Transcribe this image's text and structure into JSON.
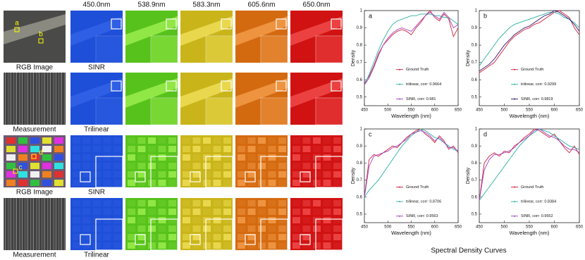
{
  "figure": {
    "wavelengths": [
      "450.0nm",
      "538.9nm",
      "583.3nm",
      "605.6nm",
      "650.0nm"
    ],
    "row_labels": [
      [
        "RGB Image",
        "SINR"
      ],
      [
        "Measurement",
        "Trilinear"
      ],
      [
        "RGB Image",
        "SINR"
      ],
      [
        "Measurement",
        "Trilinear"
      ]
    ],
    "points": [
      "a",
      "b",
      "c",
      "d"
    ],
    "caption": "Spectral Density Curves"
  },
  "chart_data": [
    {
      "type": "line",
      "panel_label": "a",
      "xlabel": "Wavelength (nm)",
      "ylabel": "Density",
      "x": [
        450,
        460,
        470,
        480,
        490,
        500,
        510,
        520,
        530,
        540,
        550,
        560,
        570,
        580,
        590,
        600,
        610,
        620,
        630,
        640,
        650
      ],
      "xlim": [
        450,
        650
      ],
      "xticks": [
        450,
        500,
        550,
        600,
        650
      ],
      "ylim": [
        0.45,
        1.0
      ],
      "yticks": [
        0.5,
        0.6,
        0.7,
        0.8,
        0.9,
        1
      ],
      "series": [
        {
          "name": "Ground Truth",
          "color": "#d0203a",
          "values": [
            0.58,
            0.62,
            0.68,
            0.75,
            0.8,
            0.83,
            0.86,
            0.88,
            0.89,
            0.88,
            0.86,
            0.9,
            0.93,
            0.97,
            1.0,
            0.96,
            0.94,
            0.98,
            0.95,
            0.85,
            0.9
          ]
        },
        {
          "name": "trilinear, corr: 0.9664",
          "color": "#2ab0a0",
          "values": [
            0.57,
            0.63,
            0.7,
            0.77,
            0.83,
            0.88,
            0.92,
            0.94,
            0.95,
            0.96,
            0.97,
            0.97,
            0.98,
            0.98,
            0.98,
            0.97,
            0.97,
            0.96,
            0.96,
            0.94,
            0.92
          ]
        },
        {
          "name": "SINR, corr: 0.981",
          "color": "#a040c0",
          "values": [
            0.57,
            0.61,
            0.67,
            0.74,
            0.8,
            0.84,
            0.87,
            0.89,
            0.9,
            0.89,
            0.88,
            0.91,
            0.94,
            0.97,
            0.99,
            0.97,
            0.95,
            0.99,
            0.96,
            0.9,
            0.92
          ]
        }
      ]
    },
    {
      "type": "line",
      "panel_label": "b",
      "xlabel": "Wavelength (nm)",
      "ylabel": "Density",
      "x": [
        450,
        460,
        470,
        480,
        490,
        500,
        510,
        520,
        530,
        540,
        550,
        560,
        570,
        580,
        590,
        600,
        610,
        620,
        630,
        640,
        650
      ],
      "xlim": [
        450,
        650
      ],
      "xticks": [
        450,
        500,
        550,
        600,
        650
      ],
      "ylim": [
        0.45,
        1.0
      ],
      "yticks": [
        0.5,
        0.6,
        0.7,
        0.8,
        0.9,
        1
      ],
      "series": [
        {
          "name": "Ground Truth",
          "color": "#d0203a",
          "values": [
            0.64,
            0.66,
            0.68,
            0.7,
            0.74,
            0.78,
            0.82,
            0.85,
            0.87,
            0.89,
            0.9,
            0.92,
            0.93,
            0.95,
            0.97,
            0.99,
            1.0,
            0.98,
            0.96,
            0.9,
            0.86
          ]
        },
        {
          "name": "trilinear, corr: 0.9299",
          "color": "#2ab0a0",
          "values": [
            0.68,
            0.72,
            0.76,
            0.8,
            0.84,
            0.87,
            0.9,
            0.92,
            0.93,
            0.94,
            0.95,
            0.96,
            0.97,
            0.98,
            0.99,
            0.99,
            0.98,
            0.96,
            0.95,
            0.93,
            0.9
          ]
        },
        {
          "name": "SINR, corr: 0.9819",
          "color": "#3a1870",
          "values": [
            0.65,
            0.67,
            0.69,
            0.72,
            0.76,
            0.8,
            0.83,
            0.86,
            0.88,
            0.9,
            0.91,
            0.93,
            0.95,
            0.97,
            0.98,
            1.0,
            0.99,
            0.97,
            0.95,
            0.92,
            0.88
          ]
        }
      ]
    },
    {
      "type": "line",
      "panel_label": "c",
      "xlabel": "Wavelength (nm)",
      "ylabel": "Density",
      "x": [
        450,
        460,
        470,
        480,
        490,
        500,
        510,
        520,
        530,
        540,
        550,
        560,
        570,
        580,
        590,
        600,
        610,
        620,
        630,
        640,
        650
      ],
      "xlim": [
        450,
        650
      ],
      "xticks": [
        450,
        500,
        550,
        600,
        650
      ],
      "ylim": [
        0.45,
        1.0
      ],
      "yticks": [
        0.5,
        0.6,
        0.7,
        0.8,
        0.9,
        1
      ],
      "series": [
        {
          "name": "Ground Truth",
          "color": "#d0203a",
          "values": [
            0.6,
            0.82,
            0.85,
            0.84,
            0.86,
            0.88,
            0.9,
            0.89,
            0.92,
            0.95,
            0.97,
            0.99,
            1.0,
            0.97,
            0.95,
            0.92,
            0.96,
            0.93,
            0.88,
            0.9,
            0.86
          ]
        },
        {
          "name": "trilinear, corr: 0.8706",
          "color": "#2ab0a0",
          "values": [
            0.6,
            0.64,
            0.67,
            0.7,
            0.74,
            0.78,
            0.82,
            0.86,
            0.9,
            0.93,
            0.96,
            0.98,
            1.0,
            0.99,
            0.97,
            0.95,
            0.94,
            0.92,
            0.9,
            0.88,
            0.87
          ]
        },
        {
          "name": "SINR, corr: 0.9563",
          "color": "#a040c0",
          "values": [
            0.6,
            0.78,
            0.84,
            0.85,
            0.86,
            0.87,
            0.89,
            0.9,
            0.92,
            0.94,
            0.97,
            0.98,
            0.99,
            0.98,
            0.96,
            0.93,
            0.95,
            0.92,
            0.89,
            0.89,
            0.87
          ]
        }
      ]
    },
    {
      "type": "line",
      "panel_label": "d",
      "xlabel": "Wavelength (nm)",
      "ylabel": "Density",
      "x": [
        450,
        460,
        470,
        480,
        490,
        500,
        510,
        520,
        530,
        540,
        550,
        560,
        570,
        580,
        590,
        600,
        610,
        620,
        630,
        640,
        650
      ],
      "xlim": [
        450,
        650
      ],
      "xticks": [
        450,
        500,
        550,
        600,
        650
      ],
      "ylim": [
        0.45,
        1.0
      ],
      "yticks": [
        0.5,
        0.6,
        0.7,
        0.8,
        0.9,
        1
      ],
      "series": [
        {
          "name": "Ground Truth",
          "color": "#d0203a",
          "values": [
            0.58,
            0.8,
            0.84,
            0.86,
            0.84,
            0.87,
            0.86,
            0.9,
            0.92,
            0.95,
            0.97,
            1.0,
            0.99,
            0.97,
            0.95,
            0.97,
            0.93,
            0.89,
            0.86,
            0.9,
            0.85
          ]
        },
        {
          "name": "trilinear, corr: 0.8384",
          "color": "#2ab0a0",
          "values": [
            0.58,
            0.62,
            0.66,
            0.7,
            0.74,
            0.78,
            0.82,
            0.86,
            0.9,
            0.93,
            0.96,
            0.98,
            1.0,
            0.99,
            0.98,
            0.96,
            0.94,
            0.92,
            0.9,
            0.89,
            0.88
          ]
        },
        {
          "name": "SINR, corr: 0.9552",
          "color": "#a040c0",
          "values": [
            0.58,
            0.76,
            0.82,
            0.85,
            0.85,
            0.86,
            0.87,
            0.89,
            0.92,
            0.94,
            0.96,
            0.99,
            1.0,
            0.98,
            0.96,
            0.95,
            0.93,
            0.9,
            0.88,
            0.88,
            0.86
          ]
        }
      ]
    }
  ]
}
